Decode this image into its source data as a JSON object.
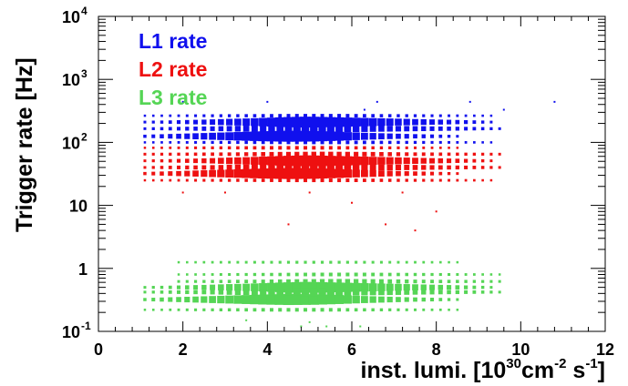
{
  "chart_data": {
    "type": "scatter",
    "title": "",
    "xlabel": {
      "text": "inst. lumi. [10",
      "exp1": "30",
      "mid": "cm",
      "exp2": "-2",
      "mid2": " s",
      "exp3": "-1",
      "close": "]"
    },
    "ylabel": "Trigger rate [Hz]",
    "xlim": [
      0,
      12
    ],
    "ylim": [
      0.1,
      10000
    ],
    "yscale": "log",
    "x_ticks": [
      "0",
      "2",
      "4",
      "6",
      "8",
      "10",
      "12"
    ],
    "y_ticks": [
      {
        "base": "10",
        "exp": "-1",
        "value": 0.1
      },
      {
        "base": "1",
        "exp": "",
        "value": 1
      },
      {
        "base": "10",
        "exp": "",
        "value": 10
      },
      {
        "base": "10",
        "exp": "2",
        "value": 100
      },
      {
        "base": "10",
        "exp": "3",
        "value": 1000
      },
      {
        "base": "10",
        "exp": "4",
        "value": 10000
      }
    ],
    "legend_placement": "top-left",
    "series": [
      {
        "name": "L1 rate",
        "color": "#1010ee",
        "core": [
          {
            "x0": 1.0,
            "x1": 9.4,
            "y": 210,
            "w": [
              0.1,
              0.15,
              0.25,
              0.35,
              0.5,
              0.6,
              0.75,
              0.9,
              1,
              0.9,
              0.8,
              0.7,
              0.6,
              0.5,
              0.4,
              0.3,
              0.2,
              0.1
            ]
          },
          {
            "x0": 1.0,
            "x1": 8.6,
            "y": 125,
            "w": [
              0.15,
              0.3,
              0.45,
              0.6,
              0.75,
              0.9,
              1,
              0.95,
              0.8,
              0.6,
              0.45,
              0.3,
              0.2,
              0.1
            ]
          },
          {
            "x0": 1.0,
            "x1": 9.6,
            "y": 165,
            "w": [
              0.1,
              0.2,
              0.3,
              0.45,
              0.55,
              0.65,
              0.6,
              0.5,
              0.4,
              0.3,
              0.2,
              0.1
            ]
          },
          {
            "x0": 1.0,
            "x1": 9.4,
            "y": 100,
            "w": [
              0.05,
              0.1,
              0.15,
              0.2,
              0.2,
              0.15,
              0.1,
              0.05
            ]
          },
          {
            "x0": 1.0,
            "x1": 9.4,
            "y": 265,
            "w": [
              0.05,
              0.1,
              0.15,
              0.2,
              0.2,
              0.15,
              0.1,
              0.05
            ]
          }
        ],
        "scatter": [
          [
            2.0,
            440
          ],
          [
            4.0,
            440
          ],
          [
            6.6,
            440
          ],
          [
            8.8,
            440
          ],
          [
            10.8,
            440
          ],
          [
            6.3,
            330
          ],
          [
            9.6,
            330
          ]
        ]
      },
      {
        "name": "L2 rate",
        "color": "#ee1010",
        "core": [
          {
            "x0": 1.0,
            "x1": 9.4,
            "y": 51,
            "w": [
              0.1,
              0.15,
              0.25,
              0.35,
              0.5,
              0.6,
              0.75,
              0.9,
              1,
              0.9,
              0.8,
              0.7,
              0.6,
              0.5,
              0.4,
              0.3,
              0.2,
              0.1
            ]
          },
          {
            "x0": 1.0,
            "x1": 8.6,
            "y": 32,
            "w": [
              0.15,
              0.3,
              0.45,
              0.6,
              0.75,
              0.9,
              1,
              0.95,
              0.8,
              0.6,
              0.45,
              0.3,
              0.2,
              0.1
            ]
          },
          {
            "x0": 1.0,
            "x1": 9.6,
            "y": 40,
            "w": [
              0.1,
              0.2,
              0.3,
              0.45,
              0.55,
              0.65,
              0.6,
              0.5,
              0.4,
              0.3,
              0.2,
              0.1
            ]
          },
          {
            "x0": 1.0,
            "x1": 9.6,
            "y": 65,
            "w": [
              0.1,
              0.15,
              0.2,
              0.3,
              0.35,
              0.3,
              0.2,
              0.15,
              0.1
            ]
          },
          {
            "x0": 1.0,
            "x1": 9.4,
            "y": 25,
            "w": [
              0.05,
              0.1,
              0.15,
              0.2,
              0.2,
              0.15,
              0.1,
              0.05
            ]
          },
          {
            "x0": 1.0,
            "x1": 8.6,
            "y": 82,
            "w": [
              0.05,
              0.1,
              0.15,
              0.2,
              0.2,
              0.15,
              0.1,
              0.05
            ]
          }
        ],
        "scatter": [
          [
            2.0,
            16
          ],
          [
            3.0,
            16
          ],
          [
            5.0,
            16
          ],
          [
            7.2,
            16
          ],
          [
            4.5,
            5
          ],
          [
            6.8,
            5
          ],
          [
            7.5,
            4
          ],
          [
            8.0,
            8
          ],
          [
            6.0,
            11
          ]
        ]
      },
      {
        "name": "L3 rate",
        "color": "#55d555",
        "core": [
          {
            "x0": 1.0,
            "x1": 9.4,
            "y": 0.5,
            "w": [
              0.1,
              0.15,
              0.25,
              0.35,
              0.5,
              0.6,
              0.75,
              0.9,
              1,
              0.9,
              0.8,
              0.7,
              0.6,
              0.5,
              0.4,
              0.3,
              0.2,
              0.1
            ]
          },
          {
            "x0": 1.0,
            "x1": 8.6,
            "y": 0.32,
            "w": [
              0.15,
              0.3,
              0.45,
              0.6,
              0.75,
              0.9,
              1,
              0.95,
              0.8,
              0.6,
              0.45,
              0.3,
              0.2,
              0.1
            ]
          },
          {
            "x0": 1.0,
            "x1": 9.6,
            "y": 0.42,
            "w": [
              0.1,
              0.2,
              0.3,
              0.45,
              0.55,
              0.65,
              0.6,
              0.5,
              0.4,
              0.3,
              0.2,
              0.1
            ]
          },
          {
            "x0": 1.8,
            "x1": 9.6,
            "y": 0.62,
            "w": [
              0.1,
              0.15,
              0.2,
              0.3,
              0.35,
              0.3,
              0.2,
              0.15,
              0.1
            ]
          },
          {
            "x0": 1.8,
            "x1": 9.6,
            "y": 0.8,
            "w": [
              0.05,
              0.1,
              0.15,
              0.2,
              0.2,
              0.15,
              0.1,
              0.05
            ]
          },
          {
            "x0": 1.8,
            "x1": 8.6,
            "y": 1.25,
            "w": [
              0.05,
              0.08,
              0.1,
              0.12,
              0.12,
              0.1,
              0.08,
              0.05
            ]
          },
          {
            "x0": 1.0,
            "x1": 8.6,
            "y": 0.22,
            "w": [
              0.05,
              0.1,
              0.15,
              0.2,
              0.2,
              0.15,
              0.1,
              0.05
            ]
          }
        ],
        "scatter": [
          [
            3.5,
            0.15
          ],
          [
            5.0,
            0.14
          ],
          [
            4.8,
            0.12
          ],
          [
            5.4,
            0.12
          ],
          [
            6.2,
            0.12
          ]
        ]
      }
    ]
  }
}
